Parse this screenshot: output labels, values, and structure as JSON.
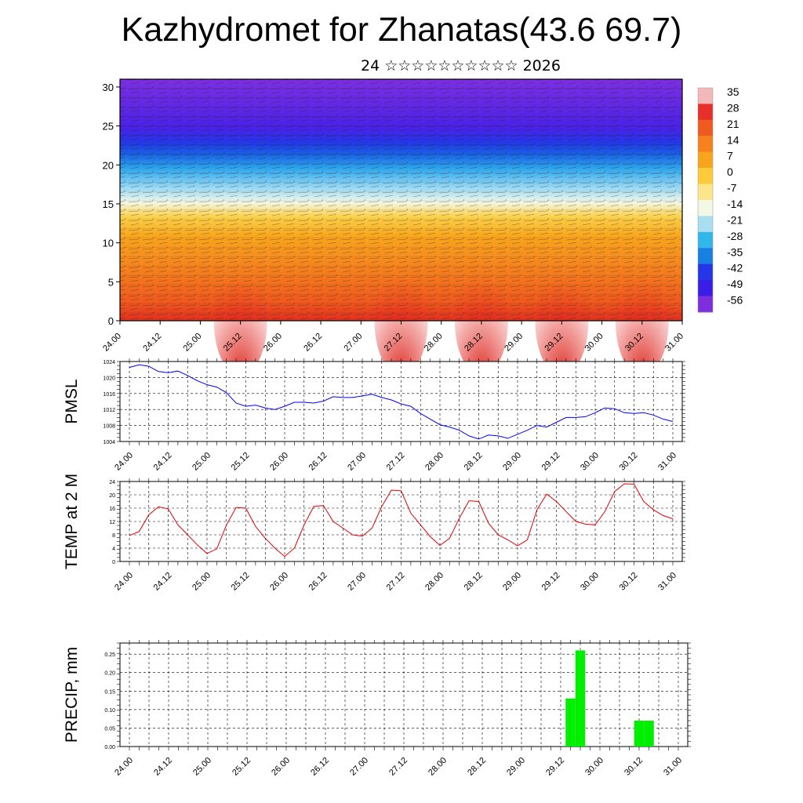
{
  "title": "Kazhydromet for Zhanatas(43.6 69.7)",
  "subtitle": "24 ☆☆☆☆☆☆☆☆☆☆ 2026",
  "x_tick_labels": [
    "24.00",
    "24.12",
    "25.00",
    "25.12",
    "26.00",
    "26.12",
    "27.00",
    "27.12",
    "28.00",
    "28.12",
    "29.00",
    "29.12",
    "30.00",
    "30.12",
    "31.00"
  ],
  "chart_data": [
    {
      "type": "heatmap",
      "title": "Kazhydromet for Zhanatas(43.6 69.7)",
      "xlabel": "",
      "ylabel": "",
      "ylim": [
        0,
        31
      ],
      "y_ticks": [
        0,
        5,
        10,
        15,
        20,
        25,
        30
      ],
      "x_ticks": [
        "24.00",
        "24.12",
        "25.00",
        "25.12",
        "26.00",
        "26.12",
        "27.00",
        "27.12",
        "28.00",
        "28.12",
        "29.00",
        "29.12",
        "30.00",
        "30.12",
        "31.00"
      ],
      "colorbar_labels": [
        "35",
        "28",
        "21",
        "14",
        "7",
        "0",
        "-7",
        "-14",
        "-21",
        "-28",
        "-35",
        "-42",
        "-49",
        "-56"
      ],
      "colorbar_colors": [
        "#f4b8b8",
        "#e8302a",
        "#f05a1e",
        "#f5821e",
        "#f8a51e",
        "#fbcb3a",
        "#fde68a",
        "#f3f7e6",
        "#a8ddf2",
        "#33b6ea",
        "#1a7fe3",
        "#2536e6",
        "#3a1ee8",
        "#7d2fe0"
      ],
      "surface_hot_spots": [
        "25.12",
        "27.12",
        "28.12",
        "29.12",
        "30.12"
      ]
    },
    {
      "type": "line",
      "ylabel": "PMSL",
      "ylim": [
        1004,
        1024
      ],
      "y_ticks": [
        1004,
        1008,
        1012,
        1016,
        1020,
        1024
      ],
      "series": [
        {
          "color": "#0000ff",
          "values": [
            1022.5,
            1023.2,
            1022.8,
            1021.5,
            1021.2,
            1021.6,
            1020.5,
            1019.2,
            1018.2,
            1017.6,
            1016.2,
            1013.6,
            1012.8,
            1013.1,
            1012.4,
            1012.0,
            1012.8,
            1013.8,
            1013.8,
            1013.6,
            1014.1,
            1015.2,
            1015.0,
            1015.0,
            1015.4,
            1015.8,
            1015.0,
            1014.4,
            1013.4,
            1012.8,
            1011.0,
            1009.6,
            1008.2,
            1007.6,
            1006.8,
            1005.4,
            1004.6,
            1005.6,
            1005.4,
            1004.8,
            1005.8,
            1006.8,
            1008.0,
            1007.6,
            1008.8,
            1010.0,
            1010.0,
            1010.2,
            1011.2,
            1012.4,
            1012.2,
            1011.2,
            1011.0,
            1011.2,
            1010.6,
            1009.6,
            1009.0
          ]
        }
      ]
    },
    {
      "type": "line",
      "ylabel": "TEMP at 2 M",
      "ylim": [
        0,
        24
      ],
      "y_ticks": [
        0,
        4,
        8,
        12,
        16,
        20,
        24
      ],
      "series": [
        {
          "color": "#e00000",
          "values": [
            7.8,
            9.0,
            14.0,
            16.4,
            15.8,
            11.0,
            8.0,
            5.0,
            2.4,
            3.8,
            11.0,
            16.2,
            16.0,
            10.5,
            7.0,
            4.0,
            1.5,
            4.0,
            11.0,
            16.5,
            16.8,
            12.0,
            10.0,
            8.0,
            7.6,
            10.0,
            16.5,
            21.4,
            21.2,
            14.5,
            11.0,
            7.5,
            4.8,
            7.0,
            13.0,
            18.2,
            18.0,
            11.5,
            8.0,
            6.5,
            4.7,
            6.5,
            15.5,
            20.2,
            18.0,
            15.0,
            12.0,
            11.2,
            11.0,
            15.0,
            21.0,
            23.3,
            23.2,
            18.0,
            15.5,
            13.8,
            12.8
          ]
        }
      ]
    },
    {
      "type": "bar",
      "ylabel": "PRECIP, mm",
      "ylim": [
        0,
        0.28
      ],
      "y_ticks": [
        "0.00",
        "0.05",
        "0.10",
        "0.15",
        "0.20",
        "0.25"
      ],
      "color": "#00ee00",
      "values": [
        0,
        0,
        0,
        0,
        0,
        0,
        0,
        0,
        0,
        0,
        0,
        0,
        0,
        0,
        0,
        0,
        0,
        0,
        0,
        0,
        0,
        0,
        0,
        0,
        0,
        0,
        0,
        0,
        0,
        0,
        0,
        0,
        0,
        0,
        0,
        0,
        0,
        0,
        0,
        0,
        0,
        0,
        0,
        0,
        0,
        0.13,
        0.26,
        0,
        0,
        0,
        0,
        0,
        0.07,
        0.07,
        0,
        0,
        0
      ]
    }
  ]
}
